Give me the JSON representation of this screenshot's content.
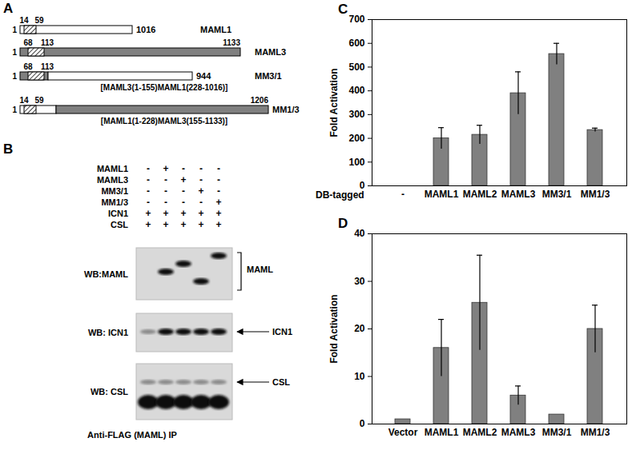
{
  "chart_data": [
    {
      "type": "bar",
      "title": "C",
      "x_label": "DB-tagged",
      "y_label": "Fold Activation",
      "categories": [
        "-",
        "MAML1",
        "MAML2",
        "MAML3",
        "MM3/1",
        "MM1/3"
      ],
      "values": [
        0,
        200,
        215,
        390,
        555,
        235
      ],
      "errors": [
        null,
        45,
        40,
        90,
        45,
        8
      ],
      "color": "#808080",
      "ylim": [
        0,
        700
      ],
      "yticks": [
        0,
        100,
        200,
        300,
        400,
        500,
        600,
        700
      ],
      "grid": false
    },
    {
      "type": "bar",
      "title": "D",
      "y_label": "Fold Activation",
      "categories": [
        "Vector",
        "MAML1",
        "MAML2",
        "MAML3",
        "MM3/1",
        "MM1/3"
      ],
      "values": [
        1,
        16,
        25.5,
        6,
        2,
        20
      ],
      "errors": [
        null,
        6,
        10,
        2,
        null,
        5
      ],
      "color": "#808080",
      "ylim": [
        0,
        40
      ],
      "yticks": [
        0,
        10,
        20,
        30,
        40
      ],
      "grid": false
    }
  ],
  "diagram": {
    "label": "A",
    "constructs": [
      {
        "name": "MAML1",
        "start": "1",
        "domain_labels": [
          "14",
          "59"
        ],
        "end": "1016",
        "segment_colors": [
          "#ffffff"
        ]
      },
      {
        "name": "MAML3",
        "start": "1",
        "domain_labels": [
          "68",
          "113"
        ],
        "end": "1133",
        "segment_colors": [
          "#808080"
        ]
      },
      {
        "name": "MM3/1",
        "start": "1",
        "domain_labels": [
          "68",
          "113"
        ],
        "end": "944",
        "description": "[MAML3(1-155)MAML1(228-1016)]",
        "segment_colors": [
          "#808080",
          "#ffffff"
        ]
      },
      {
        "name": "MM1/3",
        "start": "1",
        "domain_labels": [
          "14",
          "59"
        ],
        "end": "1206",
        "description": "[MAML1(1-228)MAML3(155-1133)]",
        "segment_colors": [
          "#ffffff",
          "#808080"
        ]
      }
    ]
  },
  "blot": {
    "label": "B",
    "conditions": [
      {
        "name": "MAML1",
        "lanes": [
          "-",
          "+",
          "-",
          "-",
          "-"
        ]
      },
      {
        "name": "MAML3",
        "lanes": [
          "-",
          "-",
          "+",
          "-",
          "-"
        ]
      },
      {
        "name": "MM3/1",
        "lanes": [
          "-",
          "-",
          "-",
          "+",
          "-"
        ]
      },
      {
        "name": "MM1/3",
        "lanes": [
          "-",
          "-",
          "-",
          "-",
          "+"
        ]
      },
      {
        "name": "ICN1",
        "lanes": [
          "+",
          "+",
          "+",
          "+",
          "+"
        ]
      },
      {
        "name": "CSL",
        "lanes": [
          "+",
          "+",
          "+",
          "+",
          "+"
        ]
      }
    ],
    "panels": [
      {
        "label": "WB:MAML",
        "target": "MAML",
        "marker": "bracket"
      },
      {
        "label": "WB: ICN1",
        "target": "ICN1",
        "marker": "arrow"
      },
      {
        "label": "WB: CSL",
        "target": "CSL",
        "marker": "arrow"
      }
    ],
    "caption": "Anti-FLAG (MAML) IP"
  }
}
